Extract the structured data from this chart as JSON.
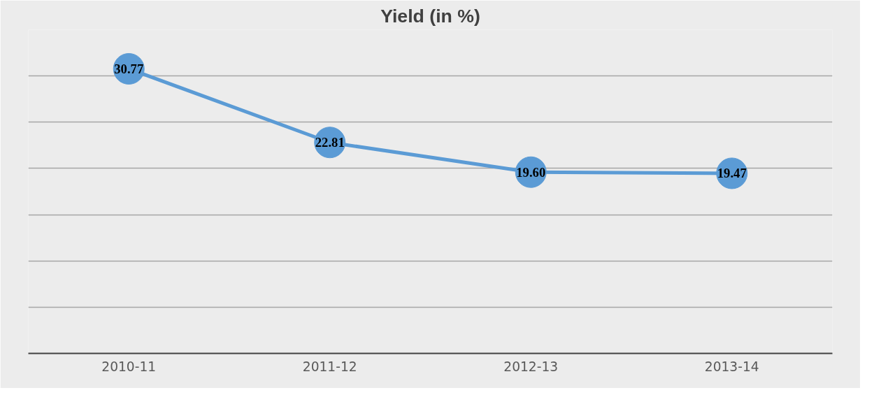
{
  "chart_data": {
    "type": "line",
    "title": "Yield (in %)",
    "categories": [
      "2010-11",
      "2011-12",
      "2012-13",
      "2013-14"
    ],
    "series": [
      {
        "color": "#5b9bd5",
        "values": [
          30.77,
          22.81,
          19.6,
          19.47
        ],
        "value_labels": [
          "30.77",
          "22.81",
          "19.60",
          "19.47"
        ]
      }
    ],
    "ylim": [
      0,
      35
    ],
    "yticks": [
      {
        "value": 0,
        "label": null
      },
      {
        "value": 5,
        "label": null
      },
      {
        "value": 10,
        "label": null
      },
      {
        "value": 15,
        "label": null
      },
      {
        "value": 20,
        "label": null
      },
      {
        "value": 25,
        "label": null
      },
      {
        "value": 30,
        "label": null
      },
      {
        "value": 35,
        "label": null
      }
    ],
    "tick_labels": "x",
    "grid": "y",
    "marker": "circle",
    "line_style": "solid"
  }
}
